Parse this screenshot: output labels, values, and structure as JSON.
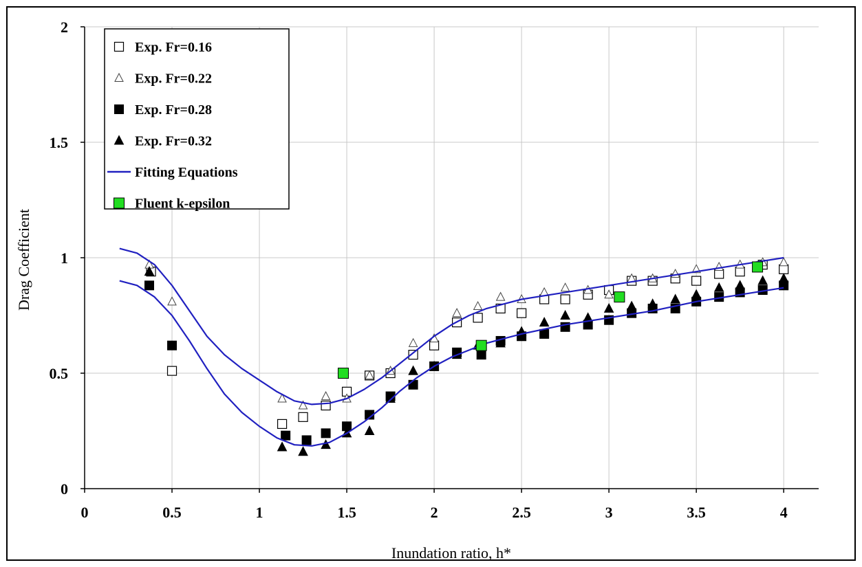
{
  "chart_data": {
    "type": "scatter",
    "title": "",
    "xlabel": "Inundation ratio, h*",
    "ylabel": "Drag Coefficient",
    "xlim": [
      0,
      4.2
    ],
    "ylim": [
      0,
      2
    ],
    "xticks": [
      0,
      0.5,
      1,
      1.5,
      2,
      2.5,
      3,
      3.5,
      4
    ],
    "yticks": [
      0,
      0.5,
      1,
      1.5,
      2
    ],
    "xtick_labels": [
      "0",
      "0.5",
      "1",
      "1.5",
      "2",
      "2.5",
      "3",
      "3.5",
      "4"
    ],
    "ytick_labels": [
      "0",
      "0.5",
      "1",
      "1.5",
      "2"
    ],
    "grid": true,
    "legend_position": "top-left",
    "series": [
      {
        "name": "Exp. Fr=0.16",
        "marker": "open-square",
        "color": "#000000",
        "points": [
          [
            0.38,
            0.94
          ],
          [
            0.5,
            0.51
          ],
          [
            1.13,
            0.28
          ],
          [
            1.25,
            0.31
          ],
          [
            1.38,
            0.36
          ],
          [
            1.5,
            0.42
          ],
          [
            1.63,
            0.49
          ],
          [
            1.75,
            0.5
          ],
          [
            1.88,
            0.58
          ],
          [
            2.0,
            0.62
          ],
          [
            2.13,
            0.72
          ],
          [
            2.25,
            0.74
          ],
          [
            2.38,
            0.78
          ],
          [
            2.5,
            0.76
          ],
          [
            2.63,
            0.82
          ],
          [
            2.75,
            0.82
          ],
          [
            2.88,
            0.84
          ],
          [
            3.0,
            0.86
          ],
          [
            3.13,
            0.9
          ],
          [
            3.25,
            0.9
          ],
          [
            3.38,
            0.91
          ],
          [
            3.5,
            0.9
          ],
          [
            3.63,
            0.93
          ],
          [
            3.75,
            0.94
          ],
          [
            3.88,
            0.97
          ],
          [
            4.0,
            0.95
          ]
        ]
      },
      {
        "name": "Exp. Fr=0.22",
        "marker": "open-triangle",
        "color": "#000000",
        "points": [
          [
            0.37,
            0.97
          ],
          [
            0.5,
            0.81
          ],
          [
            1.13,
            0.39
          ],
          [
            1.25,
            0.36
          ],
          [
            1.38,
            0.4
          ],
          [
            1.5,
            0.39
          ],
          [
            1.63,
            0.49
          ],
          [
            1.75,
            0.51
          ],
          [
            1.88,
            0.63
          ],
          [
            2.0,
            0.65
          ],
          [
            2.13,
            0.76
          ],
          [
            2.25,
            0.79
          ],
          [
            2.38,
            0.83
          ],
          [
            2.5,
            0.82
          ],
          [
            2.63,
            0.85
          ],
          [
            2.75,
            0.87
          ],
          [
            2.88,
            0.86
          ],
          [
            3.0,
            0.84
          ],
          [
            3.13,
            0.91
          ],
          [
            3.25,
            0.91
          ],
          [
            3.38,
            0.93
          ],
          [
            3.5,
            0.95
          ],
          [
            3.63,
            0.96
          ],
          [
            3.75,
            0.97
          ],
          [
            3.88,
            0.98
          ],
          [
            4.0,
            0.98
          ]
        ]
      },
      {
        "name": "Exp. Fr=0.28",
        "marker": "filled-square",
        "color": "#000000",
        "points": [
          [
            0.37,
            0.88
          ],
          [
            0.5,
            0.62
          ],
          [
            1.15,
            0.23
          ],
          [
            1.27,
            0.21
          ],
          [
            1.38,
            0.24
          ],
          [
            1.5,
            0.27
          ],
          [
            1.63,
            0.32
          ],
          [
            1.75,
            0.4
          ],
          [
            1.88,
            0.45
          ],
          [
            2.0,
            0.53
          ],
          [
            2.13,
            0.59
          ],
          [
            2.27,
            0.58
          ],
          [
            2.38,
            0.64
          ],
          [
            2.5,
            0.66
          ],
          [
            2.63,
            0.67
          ],
          [
            2.75,
            0.7
          ],
          [
            2.88,
            0.71
          ],
          [
            3.0,
            0.73
          ],
          [
            3.13,
            0.76
          ],
          [
            3.25,
            0.78
          ],
          [
            3.38,
            0.78
          ],
          [
            3.5,
            0.81
          ],
          [
            3.63,
            0.83
          ],
          [
            3.75,
            0.85
          ],
          [
            3.88,
            0.86
          ],
          [
            4.0,
            0.88
          ]
        ]
      },
      {
        "name": "Exp. Fr=0.32",
        "marker": "filled-triangle",
        "color": "#000000",
        "points": [
          [
            0.37,
            0.94
          ],
          [
            1.13,
            0.18
          ],
          [
            1.25,
            0.16
          ],
          [
            1.38,
            0.19
          ],
          [
            1.5,
            0.24
          ],
          [
            1.63,
            0.25
          ],
          [
            1.75,
            0.39
          ],
          [
            1.88,
            0.51
          ],
          [
            2.0,
            0.53
          ],
          [
            2.13,
            0.58
          ],
          [
            2.25,
            0.62
          ],
          [
            2.38,
            0.63
          ],
          [
            2.5,
            0.68
          ],
          [
            2.63,
            0.72
          ],
          [
            2.75,
            0.75
          ],
          [
            2.88,
            0.74
          ],
          [
            3.0,
            0.78
          ],
          [
            3.13,
            0.79
          ],
          [
            3.25,
            0.8
          ],
          [
            3.38,
            0.82
          ],
          [
            3.5,
            0.84
          ],
          [
            3.63,
            0.87
          ],
          [
            3.75,
            0.88
          ],
          [
            3.88,
            0.9
          ],
          [
            4.0,
            0.91
          ]
        ]
      },
      {
        "name": "Fitting Equations",
        "marker": "line",
        "color": "#2020c0",
        "lines": [
          [
            [
              0.2,
              1.04
            ],
            [
              0.3,
              1.02
            ],
            [
              0.4,
              0.97
            ],
            [
              0.5,
              0.88
            ],
            [
              0.6,
              0.77
            ],
            [
              0.7,
              0.66
            ],
            [
              0.8,
              0.58
            ],
            [
              0.9,
              0.52
            ],
            [
              1.0,
              0.47
            ],
            [
              1.1,
              0.42
            ],
            [
              1.2,
              0.38
            ],
            [
              1.3,
              0.365
            ],
            [
              1.4,
              0.37
            ],
            [
              1.5,
              0.39
            ],
            [
              1.6,
              0.43
            ],
            [
              1.7,
              0.48
            ],
            [
              1.8,
              0.54
            ],
            [
              1.9,
              0.6
            ],
            [
              2.0,
              0.66
            ],
            [
              2.1,
              0.71
            ],
            [
              2.2,
              0.75
            ],
            [
              2.3,
              0.78
            ],
            [
              2.4,
              0.8
            ],
            [
              2.5,
              0.82
            ],
            [
              2.75,
              0.85
            ],
            [
              3.0,
              0.88
            ],
            [
              3.25,
              0.91
            ],
            [
              3.5,
              0.94
            ],
            [
              3.75,
              0.97
            ],
            [
              4.0,
              1.0
            ]
          ],
          [
            [
              0.2,
              0.9
            ],
            [
              0.3,
              0.88
            ],
            [
              0.4,
              0.83
            ],
            [
              0.5,
              0.75
            ],
            [
              0.6,
              0.64
            ],
            [
              0.7,
              0.52
            ],
            [
              0.8,
              0.41
            ],
            [
              0.9,
              0.33
            ],
            [
              1.0,
              0.27
            ],
            [
              1.1,
              0.22
            ],
            [
              1.2,
              0.19
            ],
            [
              1.3,
              0.185
            ],
            [
              1.4,
              0.2
            ],
            [
              1.5,
              0.24
            ],
            [
              1.6,
              0.29
            ],
            [
              1.7,
              0.35
            ],
            [
              1.8,
              0.42
            ],
            [
              1.9,
              0.48
            ],
            [
              2.0,
              0.53
            ],
            [
              2.1,
              0.57
            ],
            [
              2.2,
              0.6
            ],
            [
              2.3,
              0.63
            ],
            [
              2.4,
              0.65
            ],
            [
              2.5,
              0.67
            ],
            [
              2.75,
              0.71
            ],
            [
              3.0,
              0.74
            ],
            [
              3.25,
              0.77
            ],
            [
              3.5,
              0.81
            ],
            [
              3.75,
              0.84
            ],
            [
              4.0,
              0.87
            ]
          ]
        ]
      },
      {
        "name": "Fluent k-epsilon",
        "marker": "green-square",
        "color": "#22dd22",
        "points": [
          [
            1.48,
            0.5
          ],
          [
            2.27,
            0.62
          ],
          [
            3.06,
            0.83
          ],
          [
            3.85,
            0.96
          ]
        ]
      }
    ]
  }
}
